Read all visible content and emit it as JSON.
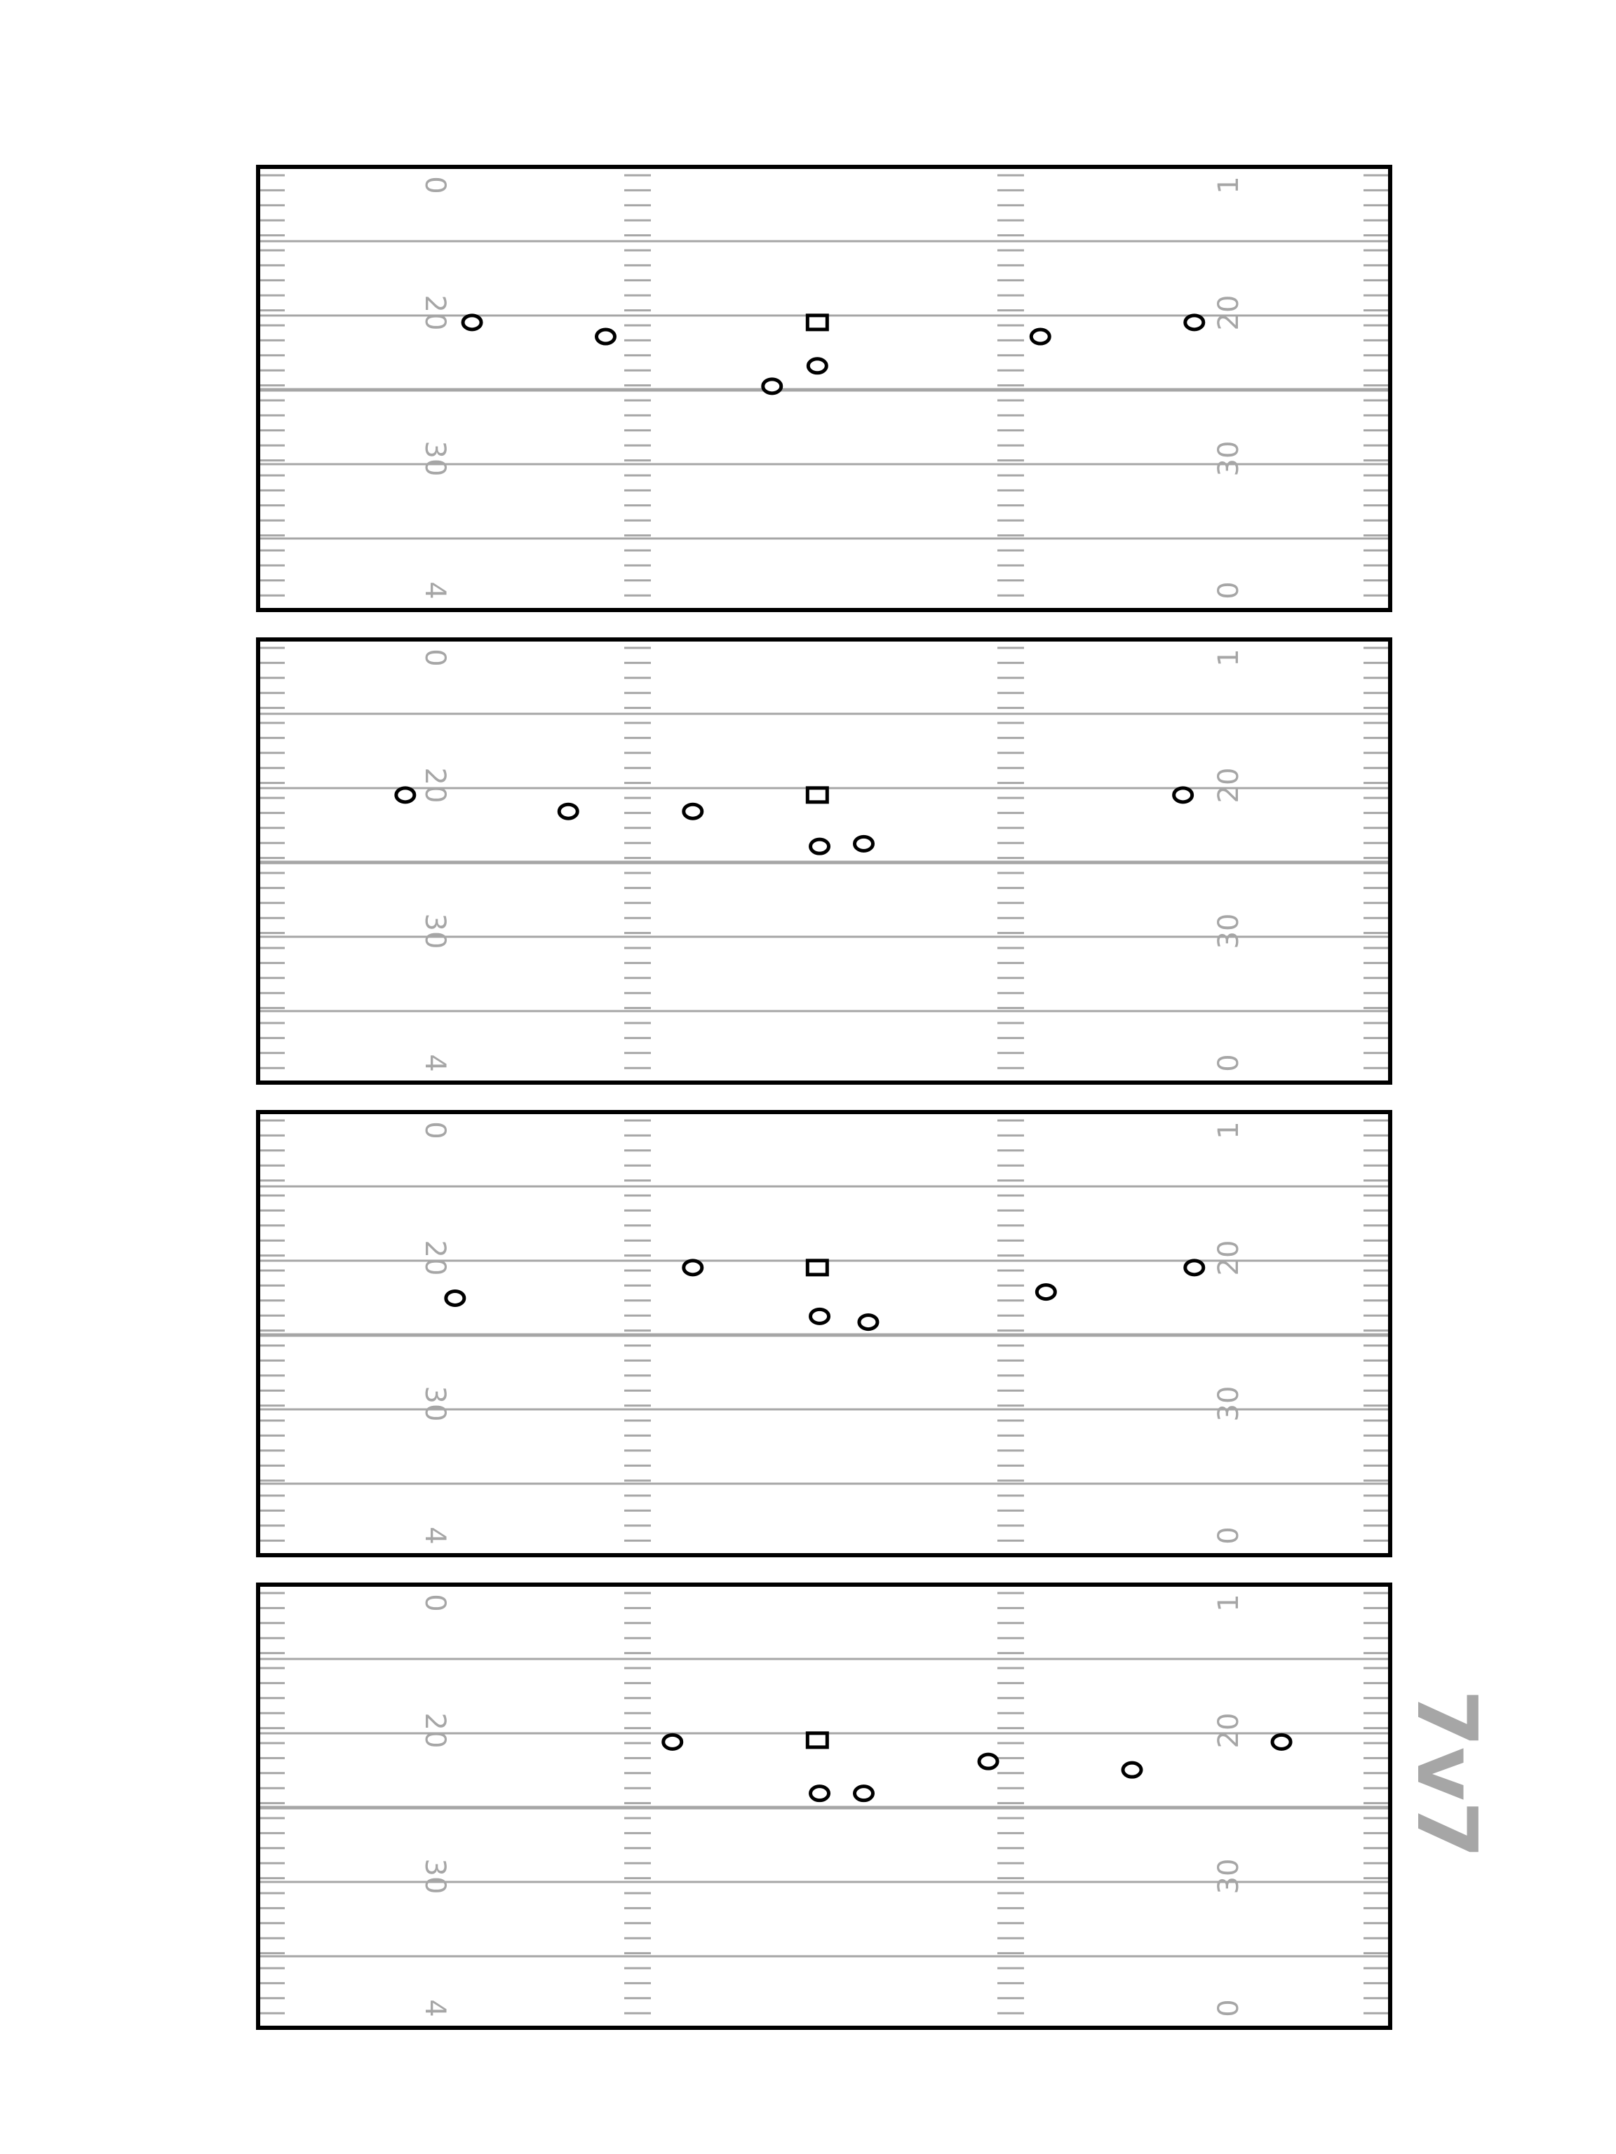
{
  "title": "7v7",
  "colors": {
    "field_border": "#000000",
    "field_line": "#a6a6a6",
    "hash": "#a6a6a6",
    "number": "#a6a6a6",
    "player": "#000000",
    "title": "#a6a6a6"
  },
  "field": {
    "top_numbers": [
      "0",
      "20",
      "30",
      "4"
    ],
    "bottom_numbers": [
      "1",
      "20",
      "30",
      "0"
    ],
    "line_of_scrimmage_line_index": 3
  },
  "plays": [
    {
      "center": [
        0.494,
        0.351
      ],
      "players": [
        [
          0.189,
          0.351
        ],
        [
          0.307,
          0.383
        ],
        [
          0.494,
          0.449
        ],
        [
          0.454,
          0.495
        ],
        [
          0.691,
          0.383
        ],
        [
          0.827,
          0.351
        ]
      ]
    },
    {
      "center": [
        0.494,
        0.351
      ],
      "players": [
        [
          0.13,
          0.351
        ],
        [
          0.274,
          0.388
        ],
        [
          0.384,
          0.388
        ],
        [
          0.496,
          0.467
        ],
        [
          0.535,
          0.461
        ],
        [
          0.817,
          0.351
        ]
      ]
    },
    {
      "center": [
        0.494,
        0.351
      ],
      "players": [
        [
          0.174,
          0.42
        ],
        [
          0.384,
          0.351
        ],
        [
          0.496,
          0.461
        ],
        [
          0.539,
          0.474
        ],
        [
          0.696,
          0.406
        ],
        [
          0.827,
          0.351
        ]
      ]
    },
    {
      "center": [
        0.494,
        0.351
      ],
      "players": [
        [
          0.366,
          0.355
        ],
        [
          0.496,
          0.471
        ],
        [
          0.535,
          0.471
        ],
        [
          0.645,
          0.399
        ],
        [
          0.772,
          0.418
        ],
        [
          0.904,
          0.355
        ]
      ]
    }
  ]
}
